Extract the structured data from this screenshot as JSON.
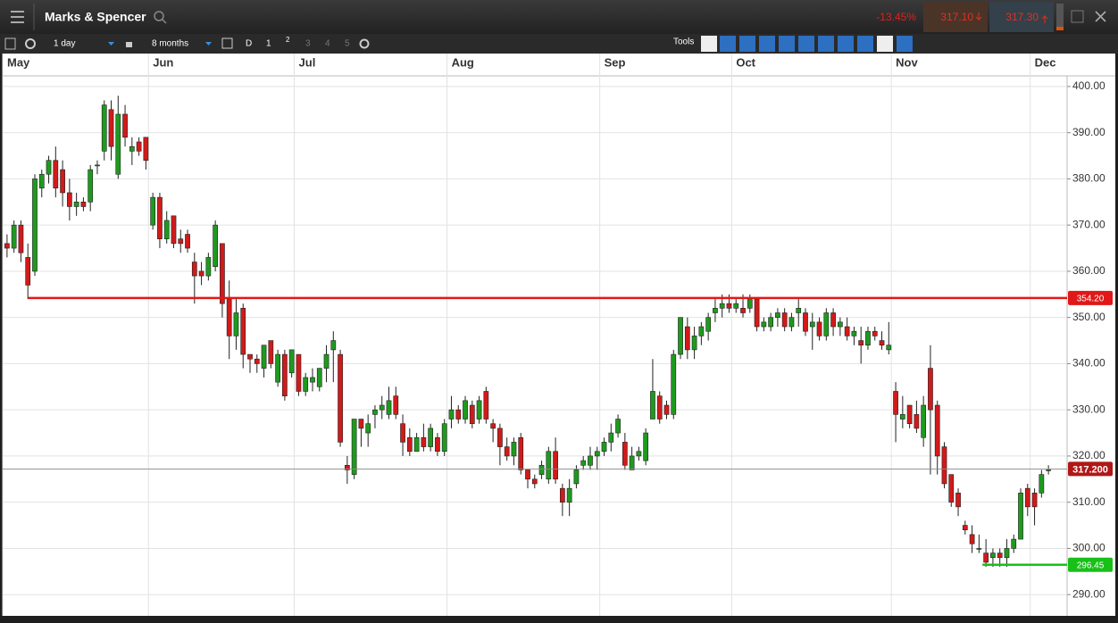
{
  "header": {
    "title": "Marks & Spencer",
    "change": "-13.45%",
    "bid": "317.10",
    "ask": "317.30"
  },
  "toolbar": {
    "interval": "1 day",
    "range": "8 months",
    "buttons": [
      "D",
      "1",
      "2",
      "3",
      "4",
      "5"
    ],
    "tools": "Tools"
  },
  "chart_data": {
    "type": "candlestick",
    "categories": [
      "May",
      null,
      null,
      null,
      null,
      null,
      null,
      null,
      null,
      null,
      null,
      null,
      null,
      null,
      null,
      null,
      null,
      null,
      null,
      null,
      null,
      "Jun",
      null,
      null,
      null,
      null,
      null,
      null,
      null,
      null,
      null,
      null,
      null,
      null,
      null,
      null,
      null,
      null,
      null,
      null,
      null,
      null,
      "Jul",
      null,
      null,
      null,
      null,
      null,
      null,
      null,
      null,
      null,
      null,
      null,
      null,
      null,
      null,
      null,
      null,
      null,
      null,
      null,
      null,
      null,
      "Aug",
      null,
      null,
      null,
      null,
      null,
      null,
      null,
      null,
      null,
      null,
      null,
      null,
      null,
      null,
      null,
      null,
      null,
      null,
      null,
      null,
      null,
      "Sep",
      null,
      null,
      null,
      null,
      null,
      null,
      null,
      null,
      null,
      null,
      null,
      null,
      null,
      null,
      null,
      null,
      null,
      null,
      "Oct",
      null,
      null,
      null,
      null,
      null,
      null,
      null,
      null,
      null,
      null,
      null,
      null,
      null,
      null,
      null,
      null,
      null,
      null,
      null,
      null,
      null,
      null,
      "Nov",
      null,
      null,
      null,
      null,
      null,
      null,
      null,
      null,
      null,
      null,
      null,
      null,
      null,
      null,
      null,
      null,
      null,
      null,
      null,
      "Dec",
      null,
      null
    ],
    "ohlc": [
      [
        366,
        368,
        363,
        365
      ],
      [
        365,
        371,
        364,
        370
      ],
      [
        370,
        371,
        362,
        364
      ],
      [
        363,
        366,
        354,
        357
      ],
      [
        360,
        381,
        359,
        380
      ],
      [
        378,
        382,
        376,
        381
      ],
      [
        381,
        385,
        379,
        384
      ],
      [
        384,
        387,
        376,
        378
      ],
      [
        382,
        384,
        374,
        377
      ],
      [
        377,
        380,
        371,
        374
      ],
      [
        374,
        377,
        372,
        375
      ],
      [
        375,
        376,
        373,
        374
      ],
      [
        375,
        383,
        373,
        382
      ],
      [
        383,
        384,
        381,
        383
      ],
      [
        386,
        397,
        384,
        396
      ],
      [
        395,
        397,
        384,
        387
      ],
      [
        381,
        398,
        380,
        394
      ],
      [
        394,
        396,
        387,
        389
      ],
      [
        386,
        389,
        383,
        387
      ],
      [
        388,
        389,
        385,
        386
      ],
      [
        389,
        389,
        382,
        384
      ],
      [
        370,
        377,
        369,
        376
      ],
      [
        376,
        377,
        365,
        367
      ],
      [
        367,
        373,
        366,
        371
      ],
      [
        372,
        372,
        365,
        366
      ],
      [
        367,
        369,
        364,
        366
      ],
      [
        368,
        369,
        364,
        365
      ],
      [
        362,
        364,
        353,
        359
      ],
      [
        360,
        362,
        357,
        359
      ],
      [
        359,
        364,
        358,
        363
      ],
      [
        361,
        371,
        360,
        370
      ],
      [
        366,
        366,
        350,
        353
      ],
      [
        354,
        358,
        341,
        346
      ],
      [
        346,
        354,
        343,
        351
      ],
      [
        352,
        353,
        339,
        342
      ],
      [
        342,
        342,
        338,
        341
      ],
      [
        341,
        342,
        338,
        340
      ],
      [
        339,
        344,
        337,
        344
      ],
      [
        345,
        345,
        339,
        340
      ],
      [
        336,
        343,
        335,
        342
      ],
      [
        342,
        343,
        332,
        333
      ],
      [
        338,
        343,
        337,
        343
      ],
      [
        342,
        342,
        333,
        334
      ],
      [
        334,
        338,
        333,
        337
      ],
      [
        336,
        339,
        334,
        337
      ],
      [
        335,
        339,
        334,
        339
      ],
      [
        339,
        344,
        336,
        342
      ],
      [
        343,
        347,
        336,
        345
      ],
      [
        342,
        343,
        322,
        323
      ],
      [
        318,
        320,
        314,
        317
      ],
      [
        316,
        328,
        315,
        328
      ],
      [
        328,
        328,
        322,
        326
      ],
      [
        325,
        329,
        322,
        327
      ],
      [
        329,
        331,
        326,
        330
      ],
      [
        330,
        333,
        328,
        331
      ],
      [
        329,
        335,
        328,
        332
      ],
      [
        333,
        335,
        328,
        329
      ],
      [
        327,
        329,
        320,
        323
      ],
      [
        324,
        326,
        320,
        321
      ],
      [
        321,
        325,
        321,
        324
      ],
      [
        324,
        327,
        321,
        322
      ],
      [
        322,
        327,
        321,
        326
      ],
      [
        324,
        325,
        320,
        321
      ],
      [
        321,
        328,
        320,
        327
      ],
      [
        328,
        333,
        326,
        330
      ],
      [
        330,
        331,
        327,
        328
      ],
      [
        328,
        333,
        327,
        332
      ],
      [
        331,
        332,
        326,
        327
      ],
      [
        328,
        333,
        327,
        332
      ],
      [
        334,
        335,
        327,
        328
      ],
      [
        327,
        328,
        323,
        326
      ],
      [
        326,
        327,
        318,
        322
      ],
      [
        322,
        324,
        319,
        320
      ],
      [
        320,
        324,
        318,
        323
      ],
      [
        324,
        325,
        316,
        317
      ],
      [
        317,
        317,
        313,
        315
      ],
      [
        315,
        316,
        313,
        314
      ],
      [
        316,
        319,
        315,
        318
      ],
      [
        315,
        322,
        314,
        321
      ],
      [
        321,
        324,
        314,
        315
      ],
      [
        313,
        314,
        307,
        310
      ],
      [
        310,
        315,
        307,
        313
      ],
      [
        314,
        318,
        313,
        317
      ],
      [
        318,
        320,
        317,
        319
      ],
      [
        318,
        322,
        317,
        320
      ],
      [
        320,
        322,
        317,
        321
      ],
      [
        321,
        324,
        320,
        323
      ],
      [
        323,
        327,
        321,
        325
      ],
      [
        325,
        329,
        324,
        328
      ],
      [
        323,
        325,
        317,
        318
      ],
      [
        317,
        322,
        317,
        320
      ],
      [
        320,
        322,
        319,
        321
      ],
      [
        319,
        326,
        318,
        325
      ],
      [
        328,
        341,
        328,
        334
      ],
      [
        333,
        334,
        327,
        328
      ],
      [
        331,
        332,
        328,
        329
      ],
      [
        329,
        343,
        328,
        342
      ],
      [
        342,
        350,
        341,
        350
      ],
      [
        348,
        350,
        341,
        343
      ],
      [
        343,
        348,
        341,
        346
      ],
      [
        346,
        349,
        344,
        348
      ],
      [
        347,
        351,
        345,
        350
      ],
      [
        351,
        354,
        349,
        352
      ],
      [
        352,
        355,
        350,
        353
      ],
      [
        353,
        355,
        351,
        352
      ],
      [
        352,
        354,
        351,
        353
      ],
      [
        352,
        355,
        350,
        351
      ],
      [
        352,
        355,
        351,
        354
      ],
      [
        354,
        354,
        347,
        348
      ],
      [
        348,
        350,
        347,
        349
      ],
      [
        348,
        351,
        347,
        350
      ],
      [
        350,
        352,
        348,
        351
      ],
      [
        351,
        352,
        347,
        348
      ],
      [
        348,
        351,
        347,
        350
      ],
      [
        351,
        354,
        348,
        352
      ],
      [
        351,
        352,
        346,
        347
      ],
      [
        348,
        351,
        343,
        349
      ],
      [
        349,
        350,
        345,
        346
      ],
      [
        346,
        352,
        345,
        351
      ],
      [
        351,
        352,
        346,
        348
      ],
      [
        348,
        350,
        346,
        349
      ],
      [
        348,
        350,
        345,
        346
      ],
      [
        346,
        348,
        344,
        347
      ],
      [
        345,
        348,
        340,
        344
      ],
      [
        344,
        348,
        343,
        347
      ],
      [
        347,
        348,
        345,
        346
      ],
      [
        345,
        347,
        343,
        344
      ],
      [
        343,
        349,
        342,
        344
      ],
      [
        334,
        336,
        323,
        329
      ],
      [
        328,
        333,
        326,
        329
      ],
      [
        331,
        331,
        326,
        327
      ],
      [
        329,
        332,
        325,
        326
      ],
      [
        324,
        333,
        322,
        331
      ],
      [
        339,
        344,
        316,
        330
      ],
      [
        331,
        332,
        316,
        320
      ],
      [
        322,
        323,
        313,
        314
      ],
      [
        316,
        316,
        309,
        310
      ],
      [
        312,
        313,
        307,
        309
      ],
      [
        305,
        306,
        303,
        304
      ],
      [
        303,
        305,
        299,
        301
      ],
      [
        300,
        303,
        299,
        300
      ],
      [
        299,
        302,
        296,
        297
      ],
      [
        298,
        300,
        296,
        299
      ],
      [
        299,
        300,
        296,
        298
      ],
      [
        298,
        302,
        296,
        300
      ],
      [
        300,
        303,
        299,
        302
      ],
      [
        302,
        313,
        302,
        312
      ],
      [
        313,
        314,
        307,
        309
      ],
      [
        312,
        313,
        305,
        309
      ],
      [
        312,
        317,
        311,
        316
      ],
      [
        317,
        318,
        316,
        317
      ]
    ],
    "up_color": "#1e9a1e",
    "down_color": "#d11a1a",
    "ylim": [
      285.4,
      402.3
    ],
    "yticks": [
      {
        "value": 290,
        "label": "290.00"
      },
      {
        "value": 300,
        "label": "300.00"
      },
      {
        "value": 310,
        "label": "310.00"
      },
      {
        "value": 320,
        "label": "320.00"
      },
      {
        "value": 330,
        "label": "330.00"
      },
      {
        "value": 340,
        "label": "340.00"
      },
      {
        "value": 350,
        "label": "350.00"
      },
      {
        "value": 360,
        "label": "360.00"
      },
      {
        "value": 370,
        "label": "370.00"
      },
      {
        "value": 380,
        "label": "380.00"
      },
      {
        "value": 390,
        "label": "390.00"
      },
      {
        "value": 400,
        "label": "400.00"
      }
    ],
    "levels": [
      {
        "value": 354.2,
        "label": "354.20",
        "color": "#e01818"
      },
      {
        "value": 296.45,
        "label": "296.45",
        "color": "#18c018"
      },
      {
        "value": 317.2,
        "label": "317.200",
        "color": "#888888"
      }
    ],
    "grid": true
  }
}
